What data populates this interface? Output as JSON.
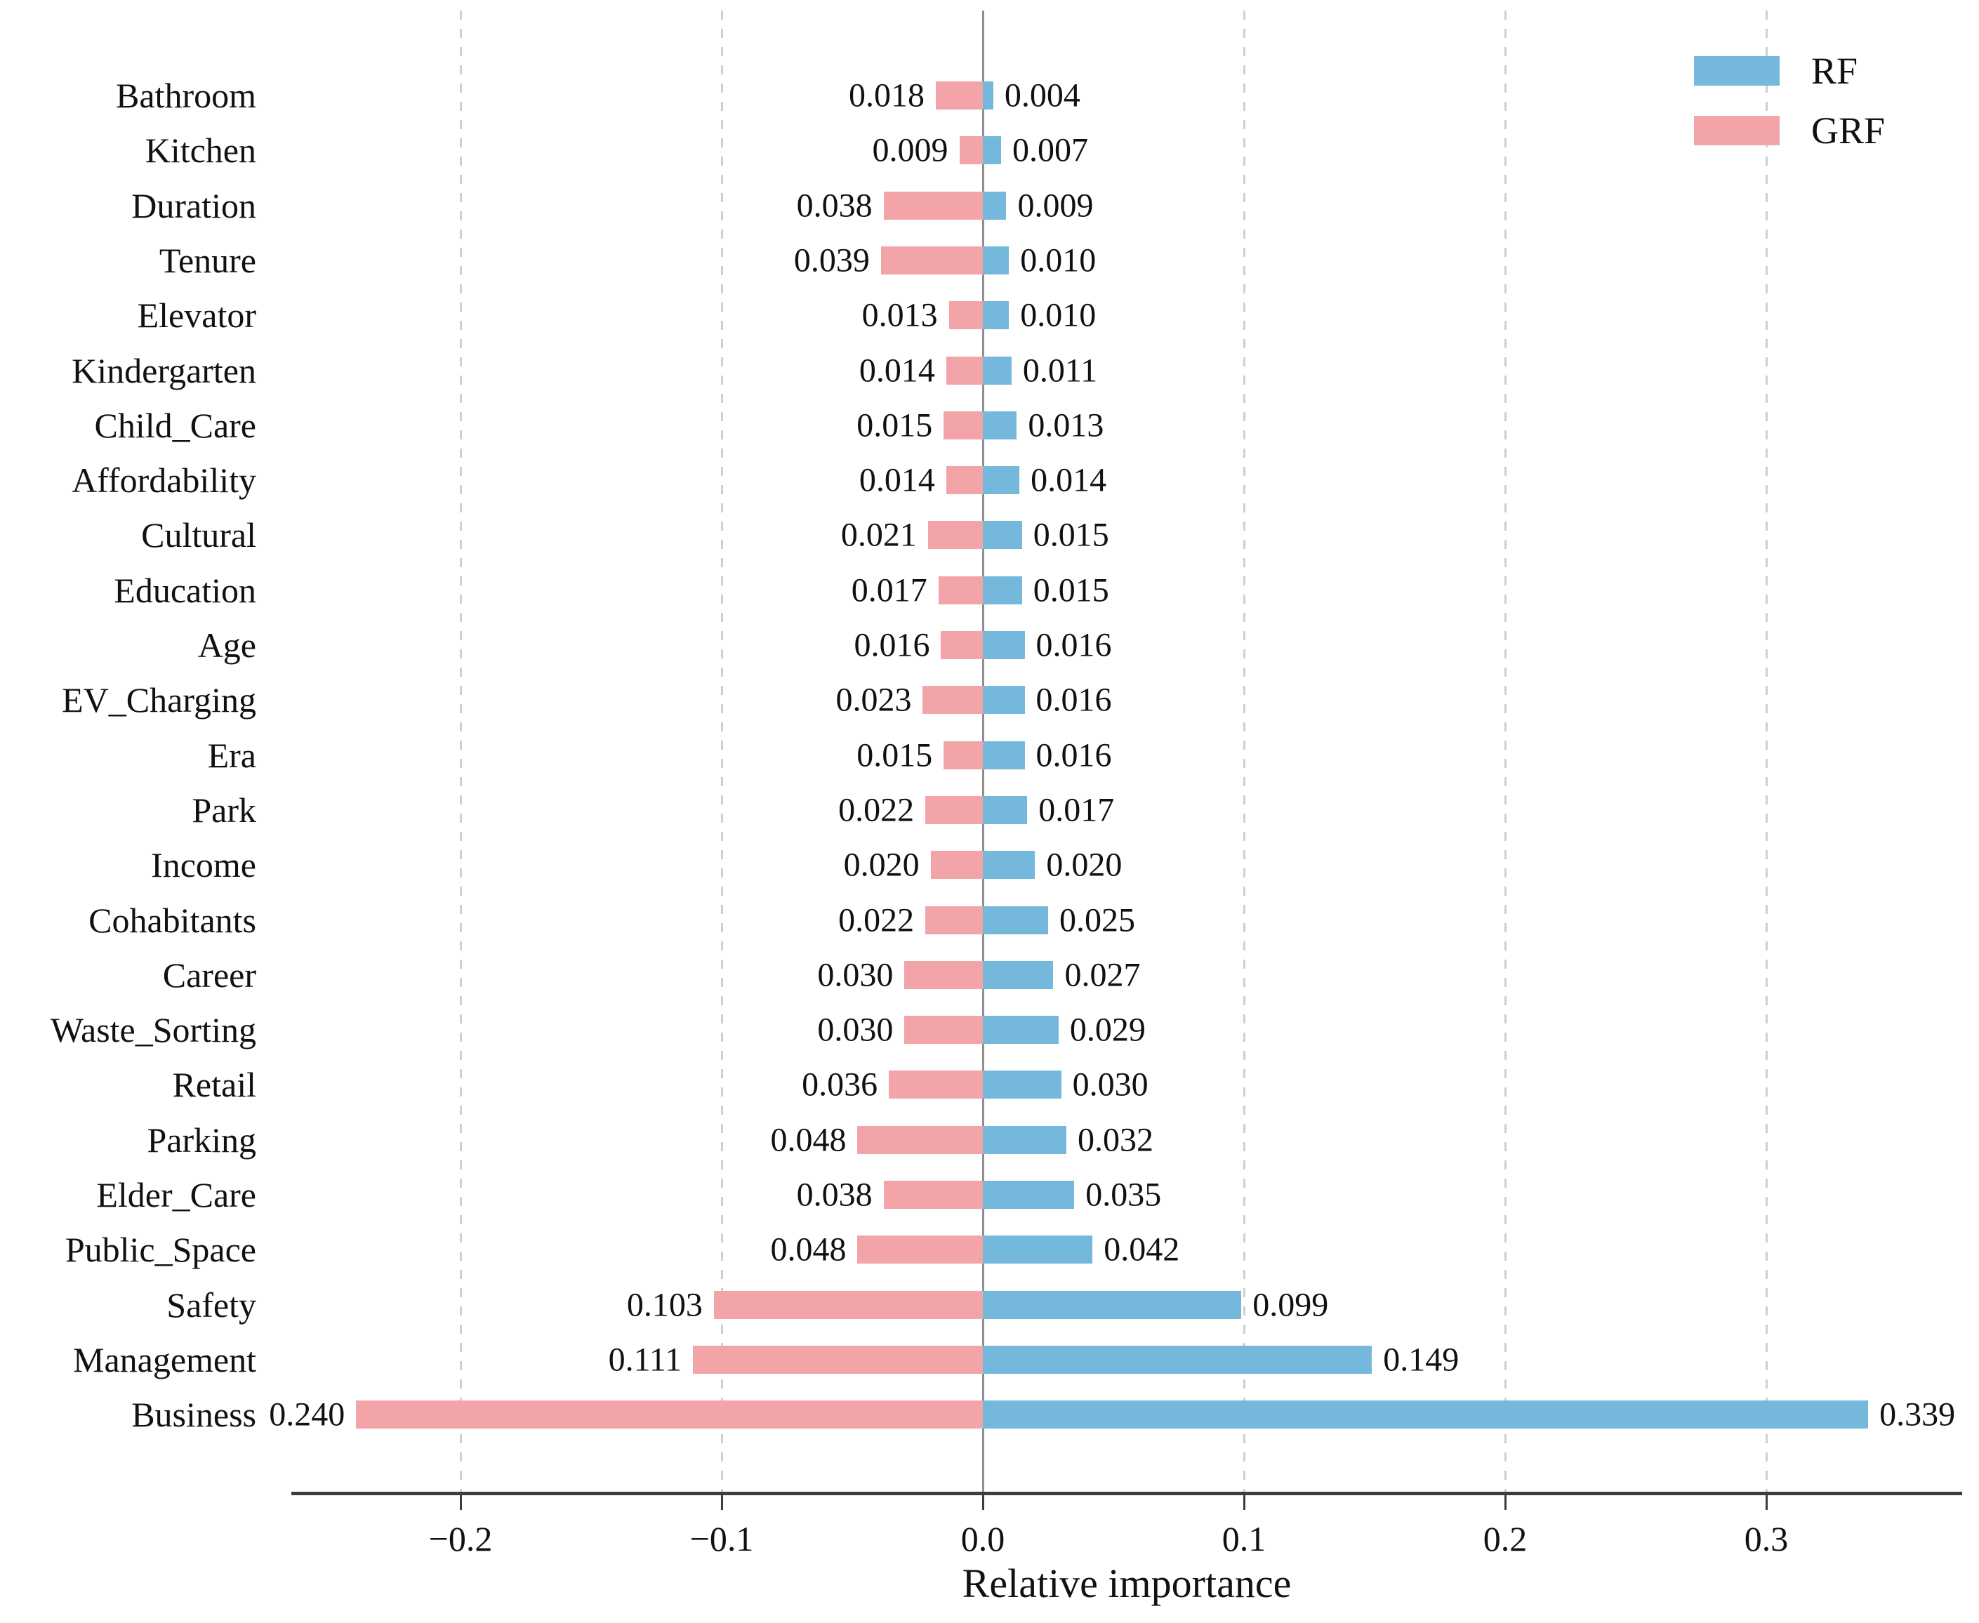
{
  "chart_data": {
    "type": "bar",
    "variant": "horizontal-diverging",
    "title": "",
    "xlabel": "Relative importance",
    "ylabel": "",
    "grid": "vertical-dashed",
    "xlim": [
      -0.265,
      0.374
    ],
    "categories": [
      "Bathroom",
      "Kitchen",
      "Duration",
      "Tenure",
      "Elevator",
      "Kindergarten",
      "Child_Care",
      "Affordability",
      "Cultural",
      "Education",
      "Age",
      "EV_Charging",
      "Era",
      "Park",
      "Income",
      "Cohabitants",
      "Career",
      "Waste_Sorting",
      "Retail",
      "Parking",
      "Elder_Care",
      "Public_Space",
      "Safety",
      "Management",
      "Business"
    ],
    "series": [
      {
        "name": "RF",
        "side": "right",
        "color": "#74b9dc",
        "values": [
          0.004,
          0.007,
          0.009,
          0.01,
          0.01,
          0.011,
          0.013,
          0.014,
          0.015,
          0.015,
          0.016,
          0.016,
          0.016,
          0.017,
          0.02,
          0.025,
          0.027,
          0.029,
          0.03,
          0.032,
          0.035,
          0.042,
          0.099,
          0.149,
          0.339
        ],
        "labels": [
          "0.004",
          "0.007",
          "0.009",
          "0.010",
          "0.010",
          "0.011",
          "0.013",
          "0.014",
          "0.015",
          "0.015",
          "0.016",
          "0.016",
          "0.016",
          "0.017",
          "0.020",
          "0.025",
          "0.027",
          "0.029",
          "0.030",
          "0.032",
          "0.035",
          "0.042",
          "0.099",
          "0.149",
          "0.339"
        ]
      },
      {
        "name": "GRF",
        "side": "left",
        "color": "#f3a4a8",
        "values": [
          0.018,
          0.009,
          0.038,
          0.039,
          0.013,
          0.014,
          0.015,
          0.014,
          0.021,
          0.017,
          0.016,
          0.023,
          0.015,
          0.022,
          0.02,
          0.022,
          0.03,
          0.03,
          0.036,
          0.048,
          0.038,
          0.048,
          0.103,
          0.111,
          0.24
        ],
        "labels": [
          "0.018",
          "0.009",
          "0.038",
          "0.039",
          "0.013",
          "0.014",
          "0.015",
          "0.014",
          "0.021",
          "0.017",
          "0.016",
          "0.023",
          "0.015",
          "0.022",
          "0.020",
          "0.022",
          "0.030",
          "0.030",
          "0.036",
          "0.048",
          "0.038",
          "0.048",
          "0.103",
          "0.111",
          "0.240"
        ]
      }
    ],
    "xticks": {
      "values": [
        -0.2,
        -0.1,
        0.0,
        0.1,
        0.2,
        0.3
      ],
      "labels": [
        "−0.2",
        "−0.1",
        "0.0",
        "0.1",
        "0.2",
        "0.3"
      ]
    },
    "legend": {
      "position": "top-right",
      "entries": [
        "RF",
        "GRF"
      ]
    },
    "colors": {
      "rf": "#74b9dc",
      "grf": "#f3a4a8",
      "zero_line": "#8f8f8f",
      "gridline": "#cfcfcf",
      "axis": "#3d3d3d"
    }
  }
}
